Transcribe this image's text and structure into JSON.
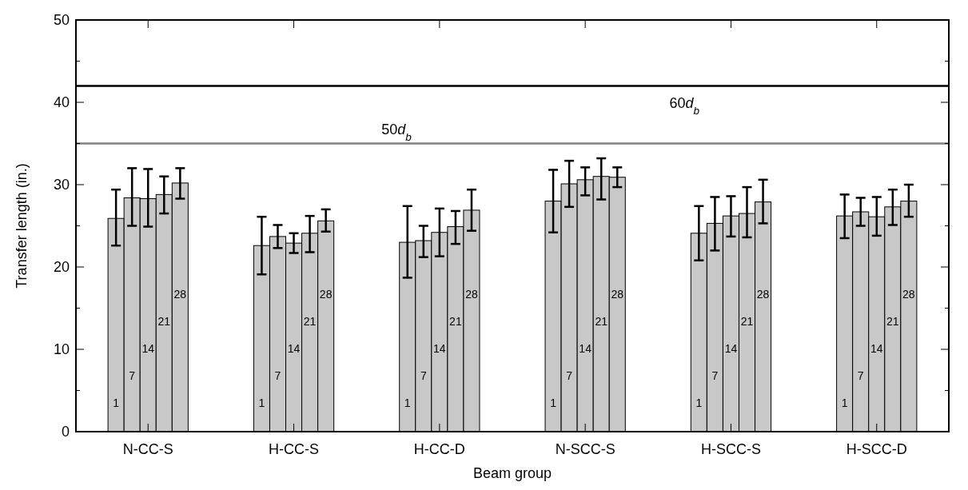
{
  "chart_data": {
    "type": "bar",
    "xlabel": "Beam group",
    "ylabel": "Transfer length (in.)",
    "categories": [
      "N-CC-S",
      "H-CC-S",
      "H-CC-D",
      "N-SCC-S",
      "H-SCC-S",
      "H-SCC-D"
    ],
    "series": [
      {
        "name": "1",
        "color": "#c8c8c8",
        "values": [
          25.9,
          22.6,
          23.0,
          28.0,
          24.1,
          26.2
        ],
        "errors": [
          [
            22.6,
            29.4
          ],
          [
            19.1,
            26.1
          ],
          [
            18.7,
            27.4
          ],
          [
            24.2,
            31.8
          ],
          [
            20.8,
            27.4
          ],
          [
            23.5,
            28.8
          ]
        ]
      },
      {
        "name": "7",
        "color": "#c8c8c8",
        "values": [
          28.4,
          23.7,
          23.2,
          30.1,
          25.3,
          26.7
        ],
        "errors": [
          [
            25.0,
            32.0
          ],
          [
            22.3,
            25.1
          ],
          [
            21.2,
            25.0
          ],
          [
            27.3,
            32.9
          ],
          [
            22.0,
            28.5
          ],
          [
            25.0,
            28.4
          ]
        ]
      },
      {
        "name": "14",
        "color": "#c8c8c8",
        "values": [
          28.3,
          22.9,
          24.2,
          30.6,
          26.2,
          26.1
        ],
        "errors": [
          [
            24.9,
            31.9
          ],
          [
            21.7,
            24.1
          ],
          [
            21.3,
            27.1
          ],
          [
            28.7,
            32.1
          ],
          [
            23.7,
            28.6
          ],
          [
            23.8,
            28.5
          ]
        ]
      },
      {
        "name": "21",
        "color": "#c8c8c8",
        "values": [
          28.8,
          24.1,
          24.9,
          31.0,
          26.5,
          27.3
        ],
        "errors": [
          [
            26.5,
            31.0
          ],
          [
            21.8,
            26.2
          ],
          [
            22.8,
            26.8
          ],
          [
            28.2,
            33.2
          ],
          [
            23.6,
            29.7
          ],
          [
            25.1,
            29.4
          ]
        ]
      },
      {
        "name": "28",
        "color": "#c8c8c8",
        "values": [
          30.2,
          25.6,
          26.9,
          30.9,
          27.9,
          28.0
        ],
        "errors": [
          [
            28.3,
            32.0
          ],
          [
            24.3,
            27.0
          ],
          [
            24.4,
            29.4
          ],
          [
            29.7,
            32.1
          ],
          [
            25.3,
            30.6
          ],
          [
            26.1,
            30.0
          ]
        ]
      }
    ],
    "ylim": [
      0,
      50
    ],
    "yticks": [
      0,
      {
        "value": 5,
        "label": null
      },
      10,
      {
        "value": 15,
        "label": null
      },
      20,
      {
        "value": 25,
        "label": null
      },
      30,
      {
        "value": 35,
        "label": null
      },
      40,
      {
        "value": 45,
        "label": null
      },
      50
    ],
    "ref_lines": [
      {
        "axis": "y",
        "value": 42,
        "label": "60d$_{b}$",
        "color": "#000000",
        "line_style": "solid"
      },
      {
        "axis": "y",
        "value": 35,
        "label": "50d$_{b}$",
        "color": "#808080",
        "line_style": "solid"
      }
    ],
    "grid": false
  }
}
